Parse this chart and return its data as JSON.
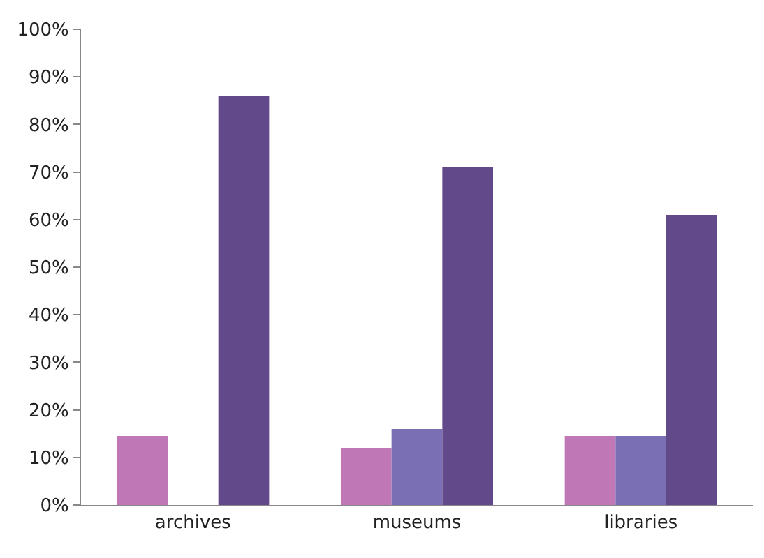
{
  "chart_data": {
    "type": "bar",
    "categories": [
      "archives",
      "museums",
      "libraries"
    ],
    "series": [
      {
        "color": "#c077b5",
        "values": [
          14.5,
          12,
          14.5
        ]
      },
      {
        "color": "#7a6fb5",
        "values": [
          0,
          16,
          14.5
        ]
      },
      {
        "color": "#62498a",
        "values": [
          86,
          71,
          61
        ]
      }
    ],
    "ylim": [
      0,
      100
    ],
    "yticks": [
      {
        "value": 0,
        "label": "0%"
      },
      {
        "value": 10,
        "label": "10%"
      },
      {
        "value": 20,
        "label": "20%"
      },
      {
        "value": 30,
        "label": "30%"
      },
      {
        "value": 40,
        "label": "40%"
      },
      {
        "value": 50,
        "label": "50%"
      },
      {
        "value": 60,
        "label": "60%"
      },
      {
        "value": 70,
        "label": "70%"
      },
      {
        "value": 80,
        "label": "80%"
      },
      {
        "value": 90,
        "label": "90%"
      },
      {
        "value": 100,
        "label": "100%"
      }
    ],
    "legend": false
  }
}
